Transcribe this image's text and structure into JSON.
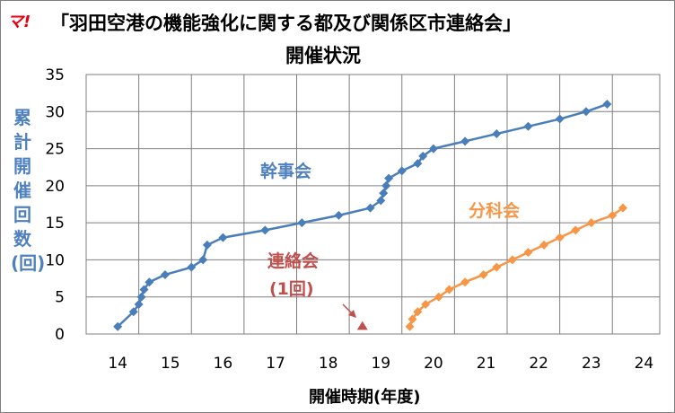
{
  "logo_text": "マ!",
  "title_line1": "「羽田空港の機能強化に関する都及び関係区市連絡会」",
  "title_line2": "開催状況",
  "chart_data": {
    "type": "line",
    "xlabel": "開催時期(年度)",
    "ylabel": "累計開催回数(回)",
    "xlim": [
      13.4,
      24.3
    ],
    "ylim": [
      0,
      35
    ],
    "x_ticks": [
      "14",
      "15",
      "16",
      "17",
      "18",
      "19",
      "20",
      "21",
      "22",
      "23",
      "24"
    ],
    "y_ticks": [
      "0",
      "5",
      "10",
      "15",
      "20",
      "25",
      "30",
      "35"
    ],
    "grid": true,
    "series": [
      {
        "name": "幹事会",
        "color": "#4a7ebb",
        "marker": "diamond",
        "points": [
          [
            14.0,
            1
          ],
          [
            14.3,
            3
          ],
          [
            14.4,
            4
          ],
          [
            14.45,
            5
          ],
          [
            14.5,
            6
          ],
          [
            14.6,
            7
          ],
          [
            14.9,
            8
          ],
          [
            15.4,
            9
          ],
          [
            15.62,
            10
          ],
          [
            15.7,
            12
          ],
          [
            16.0,
            13
          ],
          [
            16.8,
            14
          ],
          [
            17.5,
            15
          ],
          [
            18.2,
            16
          ],
          [
            18.8,
            17
          ],
          [
            19.0,
            18
          ],
          [
            19.05,
            19
          ],
          [
            19.1,
            20
          ],
          [
            19.15,
            21
          ],
          [
            19.4,
            22
          ],
          [
            19.7,
            23
          ],
          [
            19.8,
            24
          ],
          [
            20.0,
            25
          ],
          [
            20.6,
            26
          ],
          [
            21.2,
            27
          ],
          [
            21.8,
            28
          ],
          [
            22.4,
            29
          ],
          [
            22.9,
            30
          ],
          [
            23.3,
            31
          ]
        ]
      },
      {
        "name": "分科会",
        "color": "#f79646",
        "marker": "diamond",
        "points": [
          [
            19.55,
            1
          ],
          [
            19.6,
            2
          ],
          [
            19.7,
            3
          ],
          [
            19.85,
            4
          ],
          [
            20.1,
            5
          ],
          [
            20.3,
            6
          ],
          [
            20.6,
            7
          ],
          [
            20.95,
            8
          ],
          [
            21.2,
            9
          ],
          [
            21.5,
            10
          ],
          [
            21.8,
            11
          ],
          [
            22.1,
            12
          ],
          [
            22.4,
            13
          ],
          [
            22.7,
            14
          ],
          [
            23.0,
            15
          ],
          [
            23.4,
            16
          ],
          [
            23.6,
            17
          ]
        ]
      },
      {
        "name": "連絡会",
        "color": "#c0504d",
        "marker": "triangle",
        "points": [
          [
            18.65,
            1
          ]
        ]
      }
    ],
    "annotations": {
      "kanjikai": "幹事会",
      "bunkakai": "分科会",
      "renrakukai_name": "連絡会",
      "renrakukai_count": "(1回)"
    }
  }
}
